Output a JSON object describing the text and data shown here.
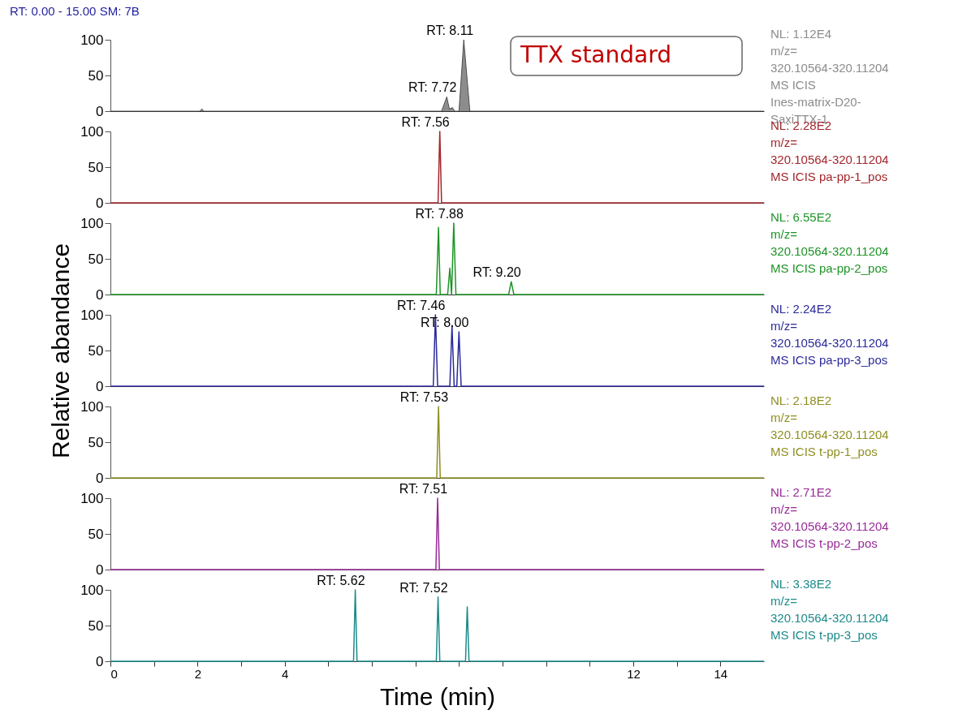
{
  "chart_data": [
    {
      "type": "area",
      "title": "RT: 0.00 - 15.00   SM: 7B",
      "xlim": [
        0,
        15
      ],
      "ylim": [
        0,
        100
      ],
      "yticks": [
        0,
        50,
        100
      ],
      "tick_labels": "y",
      "grid": false,
      "series": [
        {
          "color": "#8c8c8c",
          "x": [
            0,
            2.05,
            2.1,
            2.15,
            7.6,
            7.72,
            7.78,
            7.85,
            7.9,
            8.0,
            8.11,
            8.25,
            15
          ],
          "values": [
            0,
            0,
            3,
            0,
            0,
            20,
            3,
            5,
            0,
            0,
            100,
            0,
            0
          ]
        }
      ],
      "annotations": [
        "NL: 1.12E4\nm/z=\n320.10564-320.11204\nMS  ICIS\nInes-matrix-D20-\nSaxiTTX-1",
        "TTX standard",
        {
          "text": "RT: 8.11",
          "x": 8.11,
          "y": 100
        },
        {
          "text": "RT: 7.72",
          "x": 7.72,
          "y": 20
        }
      ]
    },
    {
      "type": "line",
      "xlim": [
        0,
        15
      ],
      "ylim": [
        0,
        100
      ],
      "yticks": [
        0,
        50,
        100
      ],
      "tick_labels": "y",
      "grid": false,
      "series": [
        {
          "color": "#a3262b",
          "x": [
            0,
            7.52,
            7.56,
            7.6,
            15
          ],
          "values": [
            0,
            0,
            100,
            0,
            0
          ]
        }
      ],
      "annotations": [
        "NL: 2.28E2\nm/z=\n320.10564-320.11204\nMS  ICIS pa-pp-1_pos",
        {
          "text": "RT: 7.56",
          "x": 7.56,
          "y": 100
        }
      ]
    },
    {
      "type": "line",
      "xlim": [
        0,
        15
      ],
      "ylim": [
        0,
        100
      ],
      "yticks": [
        0,
        50,
        100
      ],
      "tick_labels": "y",
      "grid": false,
      "series": [
        {
          "color": "#1e9427",
          "x": [
            0,
            7.48,
            7.53,
            7.57,
            7.74,
            7.79,
            7.83,
            7.88,
            7.93,
            9.14,
            9.2,
            9.26,
            15
          ],
          "values": [
            0,
            0,
            94,
            0,
            0,
            37,
            0,
            100,
            0,
            0,
            18,
            0,
            0
          ]
        }
      ],
      "annotations": [
        "NL: 6.55E2\nm/z=\n320.10564-320.11204\nMS  ICIS pa-pp-2_pos",
        {
          "text": "RT: 7.88",
          "x": 7.88,
          "y": 100
        },
        {
          "text": "RT: 9.20",
          "x": 9.2,
          "y": 18
        }
      ]
    },
    {
      "type": "line",
      "ylabel": "Relative abandance",
      "xlim": [
        0,
        15
      ],
      "ylim": [
        0,
        100
      ],
      "yticks": [
        0,
        50,
        100
      ],
      "tick_labels": "y",
      "grid": false,
      "series": [
        {
          "color": "#2a2a9c",
          "x": [
            0,
            7.41,
            7.46,
            7.51,
            7.79,
            7.84,
            7.89,
            7.95,
            8.0,
            8.05,
            15
          ],
          "values": [
            0,
            0,
            100,
            0,
            0,
            85,
            0,
            0,
            76,
            0,
            0
          ]
        }
      ],
      "annotations": [
        "NL: 2.24E2\nm/z=\n320.10564-320.11204\nMS  ICIS pa-pp-3_pos",
        {
          "text": "RT: 7.46",
          "x": 7.46,
          "y": 100
        },
        {
          "text": "RT: 8.00",
          "x": 8.0,
          "y": 76
        }
      ]
    },
    {
      "type": "line",
      "xlim": [
        0,
        15
      ],
      "ylim": [
        0,
        100
      ],
      "yticks": [
        0,
        50,
        100
      ],
      "tick_labels": "y",
      "grid": false,
      "series": [
        {
          "color": "#8f8f23",
          "x": [
            0,
            7.49,
            7.53,
            7.57,
            15
          ],
          "values": [
            0,
            0,
            100,
            0,
            0
          ]
        }
      ],
      "annotations": [
        "NL: 2.18E2\nm/z=\n320.10564-320.11204\nMS  ICIS t-pp-1_pos",
        {
          "text": "RT: 7.53",
          "x": 7.53,
          "y": 100
        }
      ]
    },
    {
      "type": "line",
      "xlim": [
        0,
        15
      ],
      "ylim": [
        0,
        100
      ],
      "yticks": [
        0,
        50,
        100
      ],
      "tick_labels": "y",
      "grid": false,
      "series": [
        {
          "color": "#982a98",
          "x": [
            0,
            7.47,
            7.51,
            7.55,
            15
          ],
          "values": [
            0,
            0,
            100,
            0,
            0
          ]
        }
      ],
      "annotations": [
        "NL: 2.71E2\nm/z=\n320.10564-320.11204\nMS  ICIS t-pp-2_pos",
        {
          "text": "RT: 7.51",
          "x": 7.51,
          "y": 100
        }
      ]
    },
    {
      "type": "line",
      "xlabel": "Time (min)",
      "xlim": [
        0,
        15
      ],
      "xticks": [
        0,
        {
          "value": 1,
          "label": null
        },
        2,
        {
          "value": 3,
          "label": null
        },
        4,
        {
          "value": 5,
          "label": null
        },
        {
          "value": 6,
          "label": null
        },
        {
          "value": 7,
          "label": null
        },
        {
          "value": 8,
          "label": null
        },
        {
          "value": 9,
          "label": null
        },
        {
          "value": 10,
          "label": null
        },
        {
          "value": 11,
          "label": null
        },
        12,
        {
          "value": 13,
          "label": null
        },
        14
      ],
      "ylim": [
        0,
        100
      ],
      "yticks": [
        0,
        50,
        100
      ],
      "grid": false,
      "series": [
        {
          "color": "#1d8a8a",
          "x": [
            0,
            5.58,
            5.62,
            5.66,
            7.48,
            7.52,
            7.56,
            8.15,
            8.19,
            8.23,
            15
          ],
          "values": [
            0,
            0,
            100,
            0,
            0,
            90,
            0,
            0,
            76,
            0,
            0
          ]
        }
      ],
      "annotations": [
        "NL: 3.38E2\nm/z=\n320.10564-320.11204\nMS  ICIS t-pp-3_pos",
        {
          "text": "RT: 5.62",
          "x": 5.62,
          "y": 100
        },
        {
          "text": "RT: 7.52",
          "x": 7.52,
          "y": 90
        }
      ]
    }
  ]
}
